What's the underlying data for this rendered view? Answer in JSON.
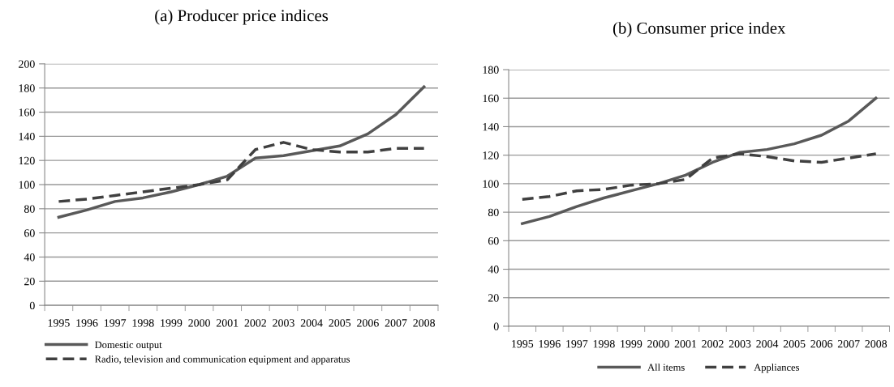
{
  "chart_data": [
    {
      "type": "line",
      "title": "(a) Producer price indices",
      "categories": [
        "1995",
        "1996",
        "1997",
        "1998",
        "1999",
        "2000",
        "2001",
        "2002",
        "2003",
        "2004",
        "2005",
        "2006",
        "2007",
        "2008"
      ],
      "series": [
        {
          "name": "Domestic output",
          "color": "#595959",
          "line_style": "solid",
          "values": [
            73,
            79,
            86,
            89,
            94,
            100,
            107,
            122,
            124,
            128,
            132,
            142,
            158,
            181
          ]
        },
        {
          "name": "Radio, television and communication equipment and apparatus",
          "color": "#404040",
          "line_style": "dashed",
          "values": [
            86,
            88,
            91,
            94,
            97,
            100,
            104,
            129,
            135,
            129,
            127,
            127,
            130,
            130
          ]
        }
      ],
      "ylim": [
        0,
        200
      ],
      "yticks": [
        0,
        20,
        40,
        60,
        80,
        100,
        120,
        140,
        160,
        180,
        200
      ],
      "grid": "y",
      "legend": "bottom",
      "marker": "none"
    },
    {
      "type": "line",
      "title": "(b) Consumer price index",
      "categories": [
        "1995",
        "1996",
        "1997",
        "1998",
        "1999",
        "2000",
        "2001",
        "2002",
        "2003",
        "2004",
        "2005",
        "2006",
        "2007",
        "2008"
      ],
      "series": [
        {
          "name": "All items",
          "color": "#595959",
          "line_style": "solid",
          "values": [
            72,
            77,
            84,
            90,
            95,
            100,
            106,
            115,
            122,
            124,
            128,
            134,
            144,
            160
          ]
        },
        {
          "name": "Appliances",
          "color": "#404040",
          "line_style": "dashed",
          "values": [
            89,
            91,
            95,
            96,
            99,
            100,
            103,
            118,
            121,
            119,
            116,
            115,
            118,
            121
          ]
        }
      ],
      "ylim": [
        0,
        180
      ],
      "yticks": [
        0,
        20,
        40,
        60,
        80,
        100,
        120,
        140,
        160,
        180
      ],
      "grid": "y",
      "legend": "bottom",
      "marker": "none"
    }
  ]
}
